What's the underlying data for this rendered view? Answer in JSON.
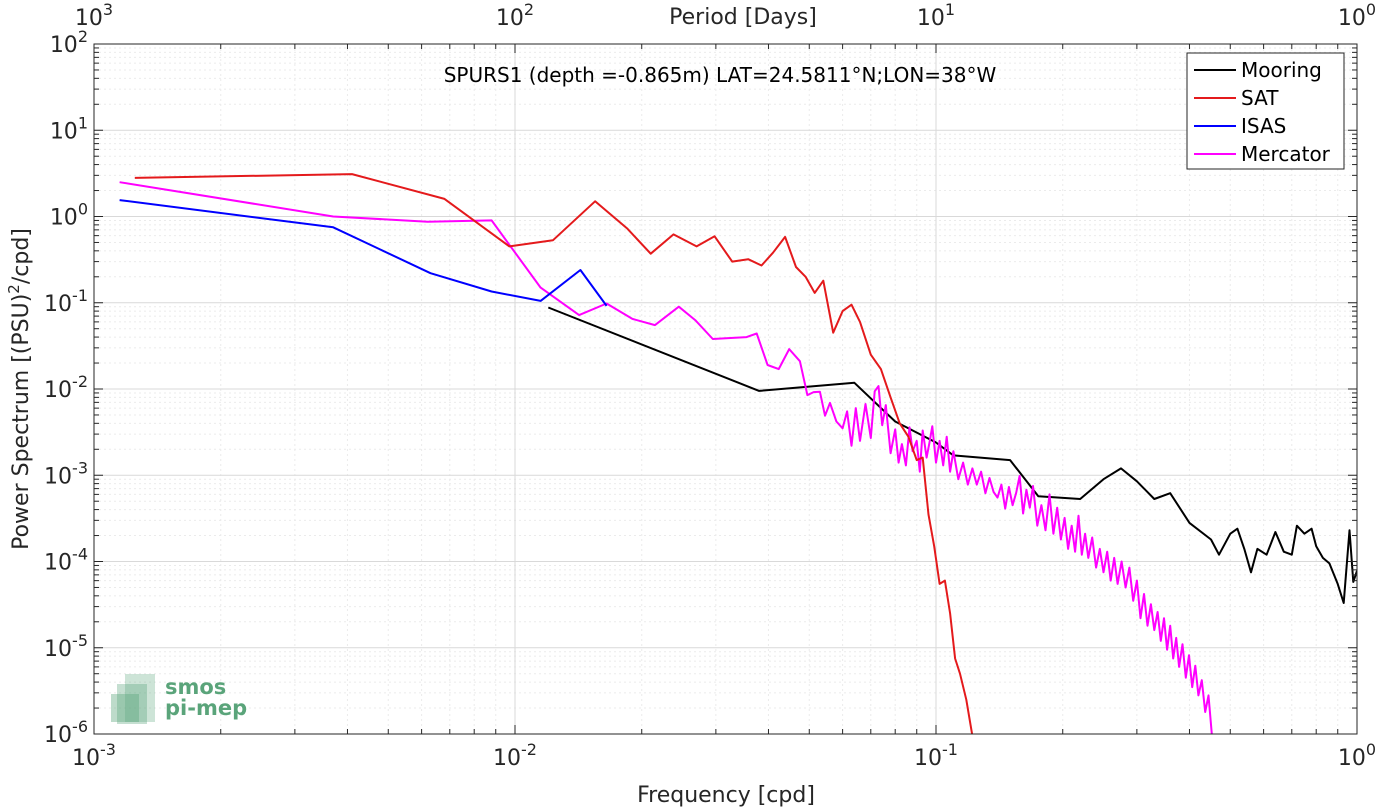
{
  "chart_data": {
    "type": "line",
    "title": "SPURS1 (depth =-0.865m) LAT=24.5811°N;LON=38°W",
    "xlabel": "Frequency [cpd]",
    "ylabel": "Power Spectrum [(PSU)",
    "ylabel_sup": "2",
    "ylabel_tail": "/cpd]",
    "top_xlabel": "Period [Days]",
    "xscale": "log",
    "yscale": "log",
    "xlim": [
      0.001,
      1
    ],
    "ylim": [
      1e-06,
      100
    ],
    "grid": true,
    "legend_position": "top-right",
    "x_ticks": [
      {
        "base": "10",
        "exp": "-3"
      },
      {
        "base": "10",
        "exp": "-2"
      },
      {
        "base": "10",
        "exp": "-1"
      },
      {
        "base": "10",
        "exp": "0"
      }
    ],
    "y_ticks": [
      {
        "base": "10",
        "exp": "-6"
      },
      {
        "base": "10",
        "exp": "-5"
      },
      {
        "base": "10",
        "exp": "-4"
      },
      {
        "base": "10",
        "exp": "-3"
      },
      {
        "base": "10",
        "exp": "-2"
      },
      {
        "base": "10",
        "exp": "-1"
      },
      {
        "base": "10",
        "exp": "0"
      },
      {
        "base": "10",
        "exp": "1"
      },
      {
        "base": "10",
        "exp": "2"
      }
    ],
    "top_ticks": [
      {
        "base": "10",
        "exp": "3"
      },
      {
        "base": "10",
        "exp": "2"
      },
      {
        "base": "10",
        "exp": "1"
      },
      {
        "base": "10",
        "exp": "0"
      }
    ],
    "series": [
      {
        "name": "Mooring",
        "color": "#000000",
        "points": [
          [
            0.012,
            0.088
          ],
          [
            0.038,
            0.0095
          ],
          [
            0.064,
            0.0118
          ],
          [
            0.08,
            0.0042
          ],
          [
            0.1,
            0.0024
          ],
          [
            0.11,
            0.0017
          ],
          [
            0.15,
            0.0015
          ],
          [
            0.175,
            0.00057
          ],
          [
            0.22,
            0.00053
          ],
          [
            0.25,
            0.0009
          ],
          [
            0.275,
            0.0012
          ],
          [
            0.3,
            0.00085
          ],
          [
            0.33,
            0.00053
          ],
          [
            0.36,
            0.00062
          ],
          [
            0.4,
            0.00028
          ],
          [
            0.45,
            0.00018
          ],
          [
            0.47,
            0.00012
          ],
          [
            0.5,
            0.00021
          ],
          [
            0.52,
            0.00024
          ],
          [
            0.54,
            0.00014
          ],
          [
            0.56,
            7.5e-05
          ],
          [
            0.58,
            0.00014
          ],
          [
            0.61,
            0.00012
          ],
          [
            0.64,
            0.00022
          ],
          [
            0.67,
            0.00013
          ],
          [
            0.7,
            0.00012
          ],
          [
            0.72,
            0.00026
          ],
          [
            0.75,
            0.00021
          ],
          [
            0.78,
            0.00024
          ],
          [
            0.8,
            0.00015
          ],
          [
            0.83,
            0.00011
          ],
          [
            0.86,
            9.5e-05
          ],
          [
            0.9,
            5.5e-05
          ],
          [
            0.93,
            3.3e-05
          ],
          [
            0.96,
            0.00023
          ],
          [
            0.98,
            5.8e-05
          ],
          [
            1.0,
            7.8e-05
          ]
        ]
      },
      {
        "name": "SAT",
        "color": "#e41a1c",
        "points": [
          [
            0.00125,
            2.8
          ],
          [
            0.0041,
            3.1
          ],
          [
            0.0068,
            1.6
          ],
          [
            0.0097,
            0.45
          ],
          [
            0.0123,
            0.53
          ],
          [
            0.0155,
            1.5
          ],
          [
            0.0185,
            0.72
          ],
          [
            0.021,
            0.37
          ],
          [
            0.0238,
            0.62
          ],
          [
            0.027,
            0.45
          ],
          [
            0.0298,
            0.59
          ],
          [
            0.0328,
            0.3
          ],
          [
            0.0358,
            0.32
          ],
          [
            0.0385,
            0.27
          ],
          [
            0.041,
            0.38
          ],
          [
            0.0438,
            0.58
          ],
          [
            0.0465,
            0.26
          ],
          [
            0.049,
            0.2
          ],
          [
            0.0515,
            0.13
          ],
          [
            0.054,
            0.18
          ],
          [
            0.057,
            0.045
          ],
          [
            0.06,
            0.08
          ],
          [
            0.063,
            0.095
          ],
          [
            0.066,
            0.06
          ],
          [
            0.07,
            0.025
          ],
          [
            0.074,
            0.017
          ],
          [
            0.078,
            0.008
          ],
          [
            0.082,
            0.004
          ],
          [
            0.086,
            0.0028
          ],
          [
            0.09,
            0.0015
          ],
          [
            0.093,
            0.0016
          ],
          [
            0.096,
            0.00035
          ],
          [
            0.099,
            0.00015
          ],
          [
            0.102,
            5.5e-05
          ],
          [
            0.105,
            6e-05
          ],
          [
            0.108,
            2.5e-05
          ],
          [
            0.111,
            7.5e-06
          ],
          [
            0.114,
            5e-06
          ],
          [
            0.118,
            2.5e-06
          ],
          [
            0.122,
            9.5e-07
          ]
        ]
      },
      {
        "name": "ISAS",
        "color": "#0000ff",
        "points": [
          [
            0.00115,
            1.55
          ],
          [
            0.0037,
            0.75
          ],
          [
            0.0063,
            0.22
          ],
          [
            0.0088,
            0.135
          ],
          [
            0.0115,
            0.105
          ],
          [
            0.0143,
            0.24
          ],
          [
            0.0165,
            0.092
          ]
        ]
      },
      {
        "name": "Mercator",
        "color": "#ff00ff",
        "points": [
          [
            0.00115,
            2.5
          ],
          [
            0.0037,
            1.0
          ],
          [
            0.0062,
            0.87
          ],
          [
            0.0088,
            0.9
          ],
          [
            0.0115,
            0.15
          ],
          [
            0.0142,
            0.072
          ],
          [
            0.0165,
            0.098
          ],
          [
            0.019,
            0.065
          ],
          [
            0.0215,
            0.055
          ],
          [
            0.0245,
            0.09
          ],
          [
            0.0268,
            0.063
          ],
          [
            0.0295,
            0.038
          ],
          [
            0.0325,
            0.039
          ],
          [
            0.0355,
            0.04
          ],
          [
            0.0375,
            0.044
          ],
          [
            0.0398,
            0.019
          ],
          [
            0.0423,
            0.017
          ],
          [
            0.0448,
            0.029
          ],
          [
            0.0475,
            0.021
          ],
          [
            0.0495,
            0.0085
          ],
          [
            0.0512,
            0.0092
          ],
          [
            0.053,
            0.0093
          ],
          [
            0.0545,
            0.0049
          ],
          [
            0.056,
            0.0069
          ],
          [
            0.058,
            0.0042
          ],
          [
            0.06,
            0.0035
          ],
          [
            0.0615,
            0.0055
          ],
          [
            0.063,
            0.0022
          ],
          [
            0.0645,
            0.006
          ],
          [
            0.066,
            0.0025
          ],
          [
            0.068,
            0.0067
          ],
          [
            0.07,
            0.0027
          ],
          [
            0.0715,
            0.0094
          ],
          [
            0.073,
            0.0108
          ],
          [
            0.0745,
            0.0038
          ],
          [
            0.076,
            0.0065
          ],
          [
            0.078,
            0.0018
          ],
          [
            0.08,
            0.0034
          ],
          [
            0.0815,
            0.0014
          ],
          [
            0.083,
            0.0023
          ],
          [
            0.0848,
            0.0013
          ],
          [
            0.0865,
            0.0036
          ],
          [
            0.088,
            0.0019
          ],
          [
            0.09,
            0.0025
          ],
          [
            0.0915,
            0.0011
          ],
          [
            0.093,
            0.0033
          ],
          [
            0.095,
            0.0016
          ],
          [
            0.0965,
            0.0024
          ],
          [
            0.098,
            0.0037
          ],
          [
            0.1,
            0.0014
          ],
          [
            0.102,
            0.0025
          ],
          [
            0.104,
            0.0013
          ],
          [
            0.106,
            0.0028
          ],
          [
            0.108,
            0.0011
          ],
          [
            0.11,
            0.0019
          ],
          [
            0.113,
            0.0009
          ],
          [
            0.116,
            0.0014
          ],
          [
            0.119,
            0.00078
          ],
          [
            0.122,
            0.0012
          ],
          [
            0.125,
            0.00078
          ],
          [
            0.128,
            0.0011
          ],
          [
            0.131,
            0.00062
          ],
          [
            0.134,
            0.00093
          ],
          [
            0.137,
            0.00064
          ],
          [
            0.14,
            0.00055
          ],
          [
            0.143,
            0.00078
          ],
          [
            0.146,
            0.00041
          ],
          [
            0.149,
            0.00073
          ],
          [
            0.152,
            0.00045
          ],
          [
            0.155,
            0.00062
          ],
          [
            0.158,
            0.00098
          ],
          [
            0.161,
            0.00036
          ],
          [
            0.164,
            0.00068
          ],
          [
            0.167,
            0.00042
          ],
          [
            0.17,
            0.00075
          ],
          [
            0.174,
            0.00026
          ],
          [
            0.178,
            0.00045
          ],
          [
            0.182,
            0.00023
          ],
          [
            0.186,
            0.0006
          ],
          [
            0.19,
            0.00021
          ],
          [
            0.194,
            0.00042
          ],
          [
            0.198,
            0.00018
          ],
          [
            0.202,
            0.00032
          ],
          [
            0.206,
            0.00014
          ],
          [
            0.21,
            0.00026
          ],
          [
            0.214,
            0.00013
          ],
          [
            0.218,
            0.00034
          ],
          [
            0.222,
            0.00012
          ],
          [
            0.226,
            0.00021
          ],
          [
            0.23,
            0.00011
          ],
          [
            0.235,
            0.00019
          ],
          [
            0.24,
            8.5e-05
          ],
          [
            0.245,
            0.00014
          ],
          [
            0.25,
            7.5e-05
          ],
          [
            0.255,
            0.00013
          ],
          [
            0.26,
            6e-05
          ],
          [
            0.265,
            0.00011
          ],
          [
            0.27,
            5.5e-05
          ],
          [
            0.276,
            0.0001
          ],
          [
            0.282,
            5e-05
          ],
          [
            0.288,
            8.5e-05
          ],
          [
            0.294,
            3.5e-05
          ],
          [
            0.3,
            6e-05
          ],
          [
            0.306,
            2.2e-05
          ],
          [
            0.312,
            4.2e-05
          ],
          [
            0.318,
            1.8e-05
          ],
          [
            0.324,
            3.2e-05
          ],
          [
            0.33,
            1.6e-05
          ],
          [
            0.336,
            2.6e-05
          ],
          [
            0.342,
            1.2e-05
          ],
          [
            0.348,
            2.2e-05
          ],
          [
            0.354,
            9.5e-06
          ],
          [
            0.36,
            1.8e-05
          ],
          [
            0.366,
            7.5e-06
          ],
          [
            0.372,
            1.3e-05
          ],
          [
            0.378,
            6e-06
          ],
          [
            0.385,
            1.1e-05
          ],
          [
            0.392,
            4.5e-06
          ],
          [
            0.399,
            8.2e-06
          ],
          [
            0.406,
            3.5e-06
          ],
          [
            0.413,
            6.2e-06
          ],
          [
            0.42,
            2.8e-06
          ],
          [
            0.428,
            4.2e-06
          ],
          [
            0.436,
            1.8e-06
          ],
          [
            0.444,
            2.8e-06
          ],
          [
            0.452,
            1e-06
          ]
        ]
      }
    ]
  },
  "logo": {
    "line1": "smos",
    "line2": "pi-mep",
    "color": "#5aa47a"
  }
}
